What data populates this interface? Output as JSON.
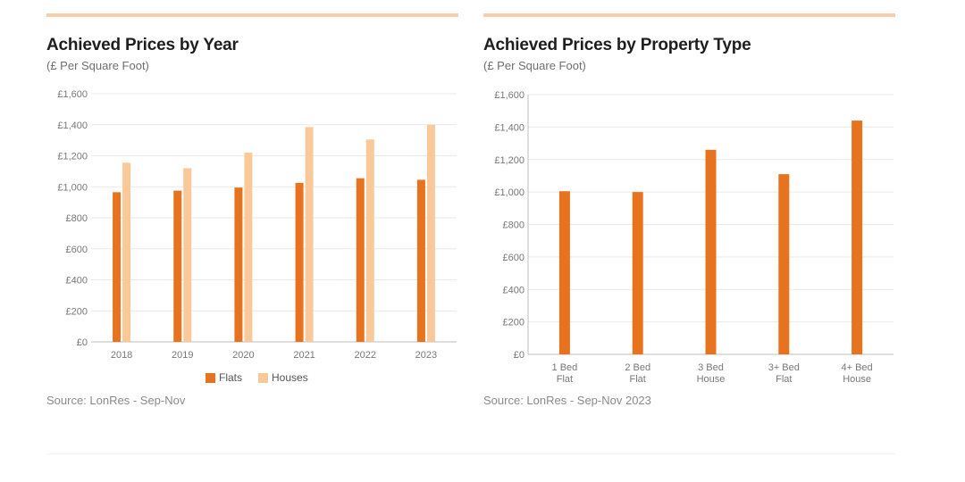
{
  "colors": {
    "accent_bar": "#f7cfae",
    "flats": "#e8731f",
    "houses": "#fac99a",
    "grid": "#e9e9e9",
    "axis": "#bdbdbd"
  },
  "left": {
    "title": "Achieved Prices by Year",
    "subtitle": "(£ Per Square Foot)",
    "source": "Source: LonRes - Sep-Nov",
    "legend": {
      "flats": "Flats",
      "houses": "Houses"
    }
  },
  "right": {
    "title": "Achieved Prices by Property Type",
    "subtitle": "(£ Per Square Foot)",
    "source": "Source: LonRes - Sep-Nov 2023"
  },
  "chart_data": [
    {
      "type": "bar",
      "title": "Achieved Prices by Year",
      "subtitle": "(£ Per Square Foot)",
      "categories": [
        "2018",
        "2019",
        "2020",
        "2021",
        "2022",
        "2023"
      ],
      "series": [
        {
          "name": "Flats",
          "values": [
            965,
            975,
            995,
            1025,
            1055,
            1045
          ]
        },
        {
          "name": "Houses",
          "values": [
            1155,
            1120,
            1220,
            1385,
            1305,
            1400
          ]
        }
      ],
      "ylim": [
        0,
        1600
      ],
      "yticks": [
        "£0",
        "£200",
        "£400",
        "£600",
        "£800",
        "£1,000",
        "£1,200",
        "£1,400",
        "£1,600"
      ],
      "grid": true,
      "legend": "bottom"
    },
    {
      "type": "bar",
      "title": "Achieved Prices by Property Type",
      "subtitle": "(£ Per Square Foot)",
      "categories": [
        [
          "1 Bed",
          "Flat"
        ],
        [
          "2 Bed",
          "Flat"
        ],
        [
          "3 Bed",
          "House"
        ],
        [
          "3+ Bed",
          "Flat"
        ],
        [
          "4+ Bed",
          "House"
        ]
      ],
      "values": [
        1005,
        1000,
        1260,
        1110,
        1440
      ],
      "ylim": [
        0,
        1600
      ],
      "yticks": [
        "£0",
        "£200",
        "£400",
        "£600",
        "£800",
        "£1,000",
        "£1,200",
        "£1,400",
        "£1,600"
      ],
      "grid": true
    }
  ]
}
